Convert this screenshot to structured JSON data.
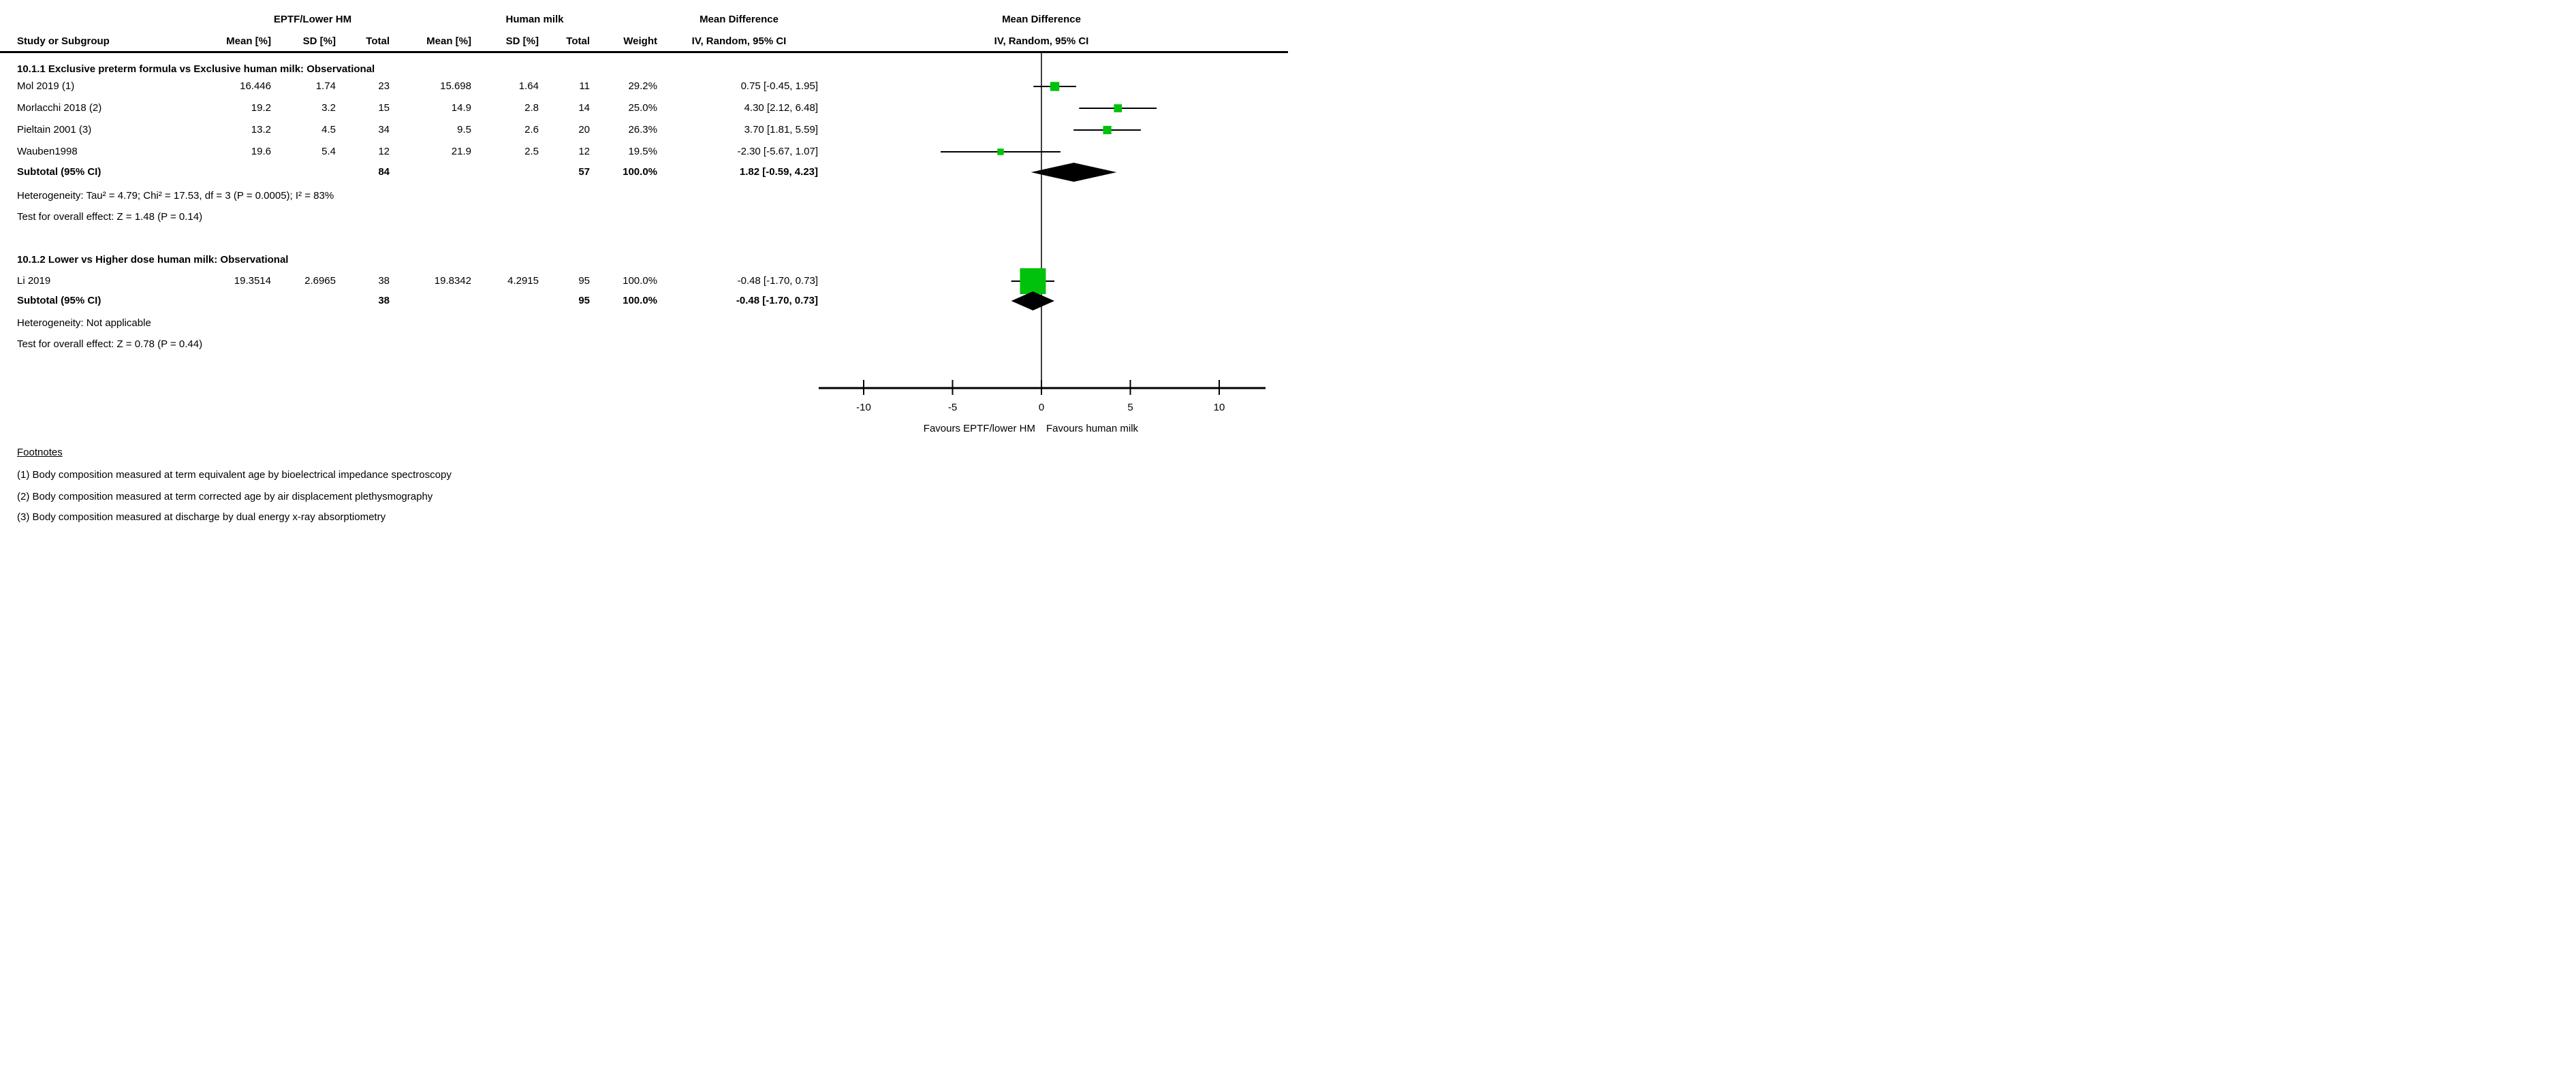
{
  "table": {
    "group_headers": {
      "experimental": "EPTF/Lower HM",
      "control": "Human milk",
      "effect": "Mean Difference"
    },
    "columns": {
      "study": "Study or Subgroup",
      "mean1": "Mean [%]",
      "sd1": "SD [%]",
      "total1": "Total",
      "mean2": "Mean [%]",
      "sd2": "SD [%]",
      "total2": "Total",
      "weight": "Weight",
      "ci": "IV, Random, 95% CI"
    },
    "plot_header": {
      "line1": "Mean Difference",
      "line2": "IV, Random, 95% CI"
    },
    "sections": [
      {
        "title": "10.1.1 Exclusive preterm formula vs Exclusive human milk: Observational",
        "rows": [
          {
            "study": "Mol 2019 (1)",
            "mean1": "16.446",
            "sd1": "1.74",
            "total1": "23",
            "mean2": "15.698",
            "sd2": "1.64",
            "total2": "11",
            "weight": "29.2%",
            "ci": "0.75 [-0.45, 1.95]"
          },
          {
            "study": "Morlacchi 2018 (2)",
            "mean1": "19.2",
            "sd1": "3.2",
            "total1": "15",
            "mean2": "14.9",
            "sd2": "2.8",
            "total2": "14",
            "weight": "25.0%",
            "ci": "4.30 [2.12, 6.48]"
          },
          {
            "study": "Pieltain 2001 (3)",
            "mean1": "13.2",
            "sd1": "4.5",
            "total1": "34",
            "mean2": "9.5",
            "sd2": "2.6",
            "total2": "20",
            "weight": "26.3%",
            "ci": "3.70 [1.81, 5.59]"
          },
          {
            "study": "Wauben1998",
            "mean1": "19.6",
            "sd1": "5.4",
            "total1": "12",
            "mean2": "21.9",
            "sd2": "2.5",
            "total2": "12",
            "weight": "19.5%",
            "ci": "-2.30 [-5.67, 1.07]"
          }
        ],
        "subtotal": {
          "study": "Subtotal (95% CI)",
          "total1": "84",
          "total2": "57",
          "weight": "100.0%",
          "ci": "1.82 [-0.59, 4.23]"
        },
        "heterogeneity": "Heterogeneity: Tau² = 4.79; Chi² = 17.53, df = 3 (P = 0.0005); I² = 83%",
        "overall_effect": "Test for overall effect: Z = 1.48 (P = 0.14)"
      },
      {
        "title": "10.1.2 Lower vs Higher dose human milk: Observational",
        "rows": [
          {
            "study": "Li 2019",
            "mean1": "19.3514",
            "sd1": "2.6965",
            "total1": "38",
            "mean2": "19.8342",
            "sd2": "4.2915",
            "total2": "95",
            "weight": "100.0%",
            "ci": "-0.48 [-1.70, 0.73]"
          }
        ],
        "subtotal": {
          "study": "Subtotal (95% CI)",
          "total1": "38",
          "total2": "95",
          "weight": "100.0%",
          "ci": "-0.48 [-1.70, 0.73]"
        },
        "heterogeneity": "Heterogeneity: Not applicable",
        "overall_effect": "Test for overall effect: Z = 0.78 (P = 0.44)"
      }
    ]
  },
  "axis": {
    "tick_labels": [
      "-10",
      "-5",
      "0",
      "5",
      "10"
    ],
    "favours_left": "Favours EPTF/lower HM",
    "favours_right": "Favours human milk"
  },
  "footnotes": {
    "title": "Footnotes",
    "items": [
      "(1) Body composition measured at term equivalent age by bioelectrical impedance spectroscopy",
      "(2) Body composition measured at term corrected age by air displacement plethysmography",
      "(3) Body composition measured at discharge by dual energy x-ray absorptiometry"
    ]
  },
  "colors": {
    "square": "#00c20a",
    "diamond": "#000000",
    "line": "#000000",
    "text": "#000000"
  },
  "chart_data": {
    "type": "forest",
    "title": "Mean Difference",
    "subtitle": "IV, Random, 95% CI",
    "effect_measure": "Mean Difference (IV, Random, 95% CI)",
    "x_ticks": [
      -10,
      -5,
      0,
      5,
      10
    ],
    "xlim": [
      -12.5,
      12.6
    ],
    "zero_line": 0,
    "groups": [
      {
        "label": "10.1.1 Exclusive preterm formula vs Exclusive human milk: Observational",
        "studies": [
          {
            "name": "Mol 2019 (1)",
            "md": 0.75,
            "ci": [
              -0.45,
              1.95
            ],
            "weight": 29.2
          },
          {
            "name": "Morlacchi 2018 (2)",
            "md": 4.3,
            "ci": [
              2.12,
              6.48
            ],
            "weight": 25.0
          },
          {
            "name": "Pieltain 2001 (3)",
            "md": 3.7,
            "ci": [
              1.81,
              5.59
            ],
            "weight": 26.3
          },
          {
            "name": "Wauben1998",
            "md": -2.3,
            "ci": [
              -5.67,
              1.07
            ],
            "weight": 19.5
          }
        ],
        "subtotal": {
          "md": 1.82,
          "ci": [
            -0.59,
            4.23
          ]
        }
      },
      {
        "label": "10.1.2 Lower vs Higher dose human milk: Observational",
        "studies": [
          {
            "name": "Li 2019",
            "md": -0.48,
            "ci": [
              -1.7,
              0.73
            ],
            "weight": 100.0
          }
        ],
        "subtotal": {
          "md": -0.48,
          "ci": [
            -1.7,
            0.73
          ]
        }
      }
    ]
  }
}
